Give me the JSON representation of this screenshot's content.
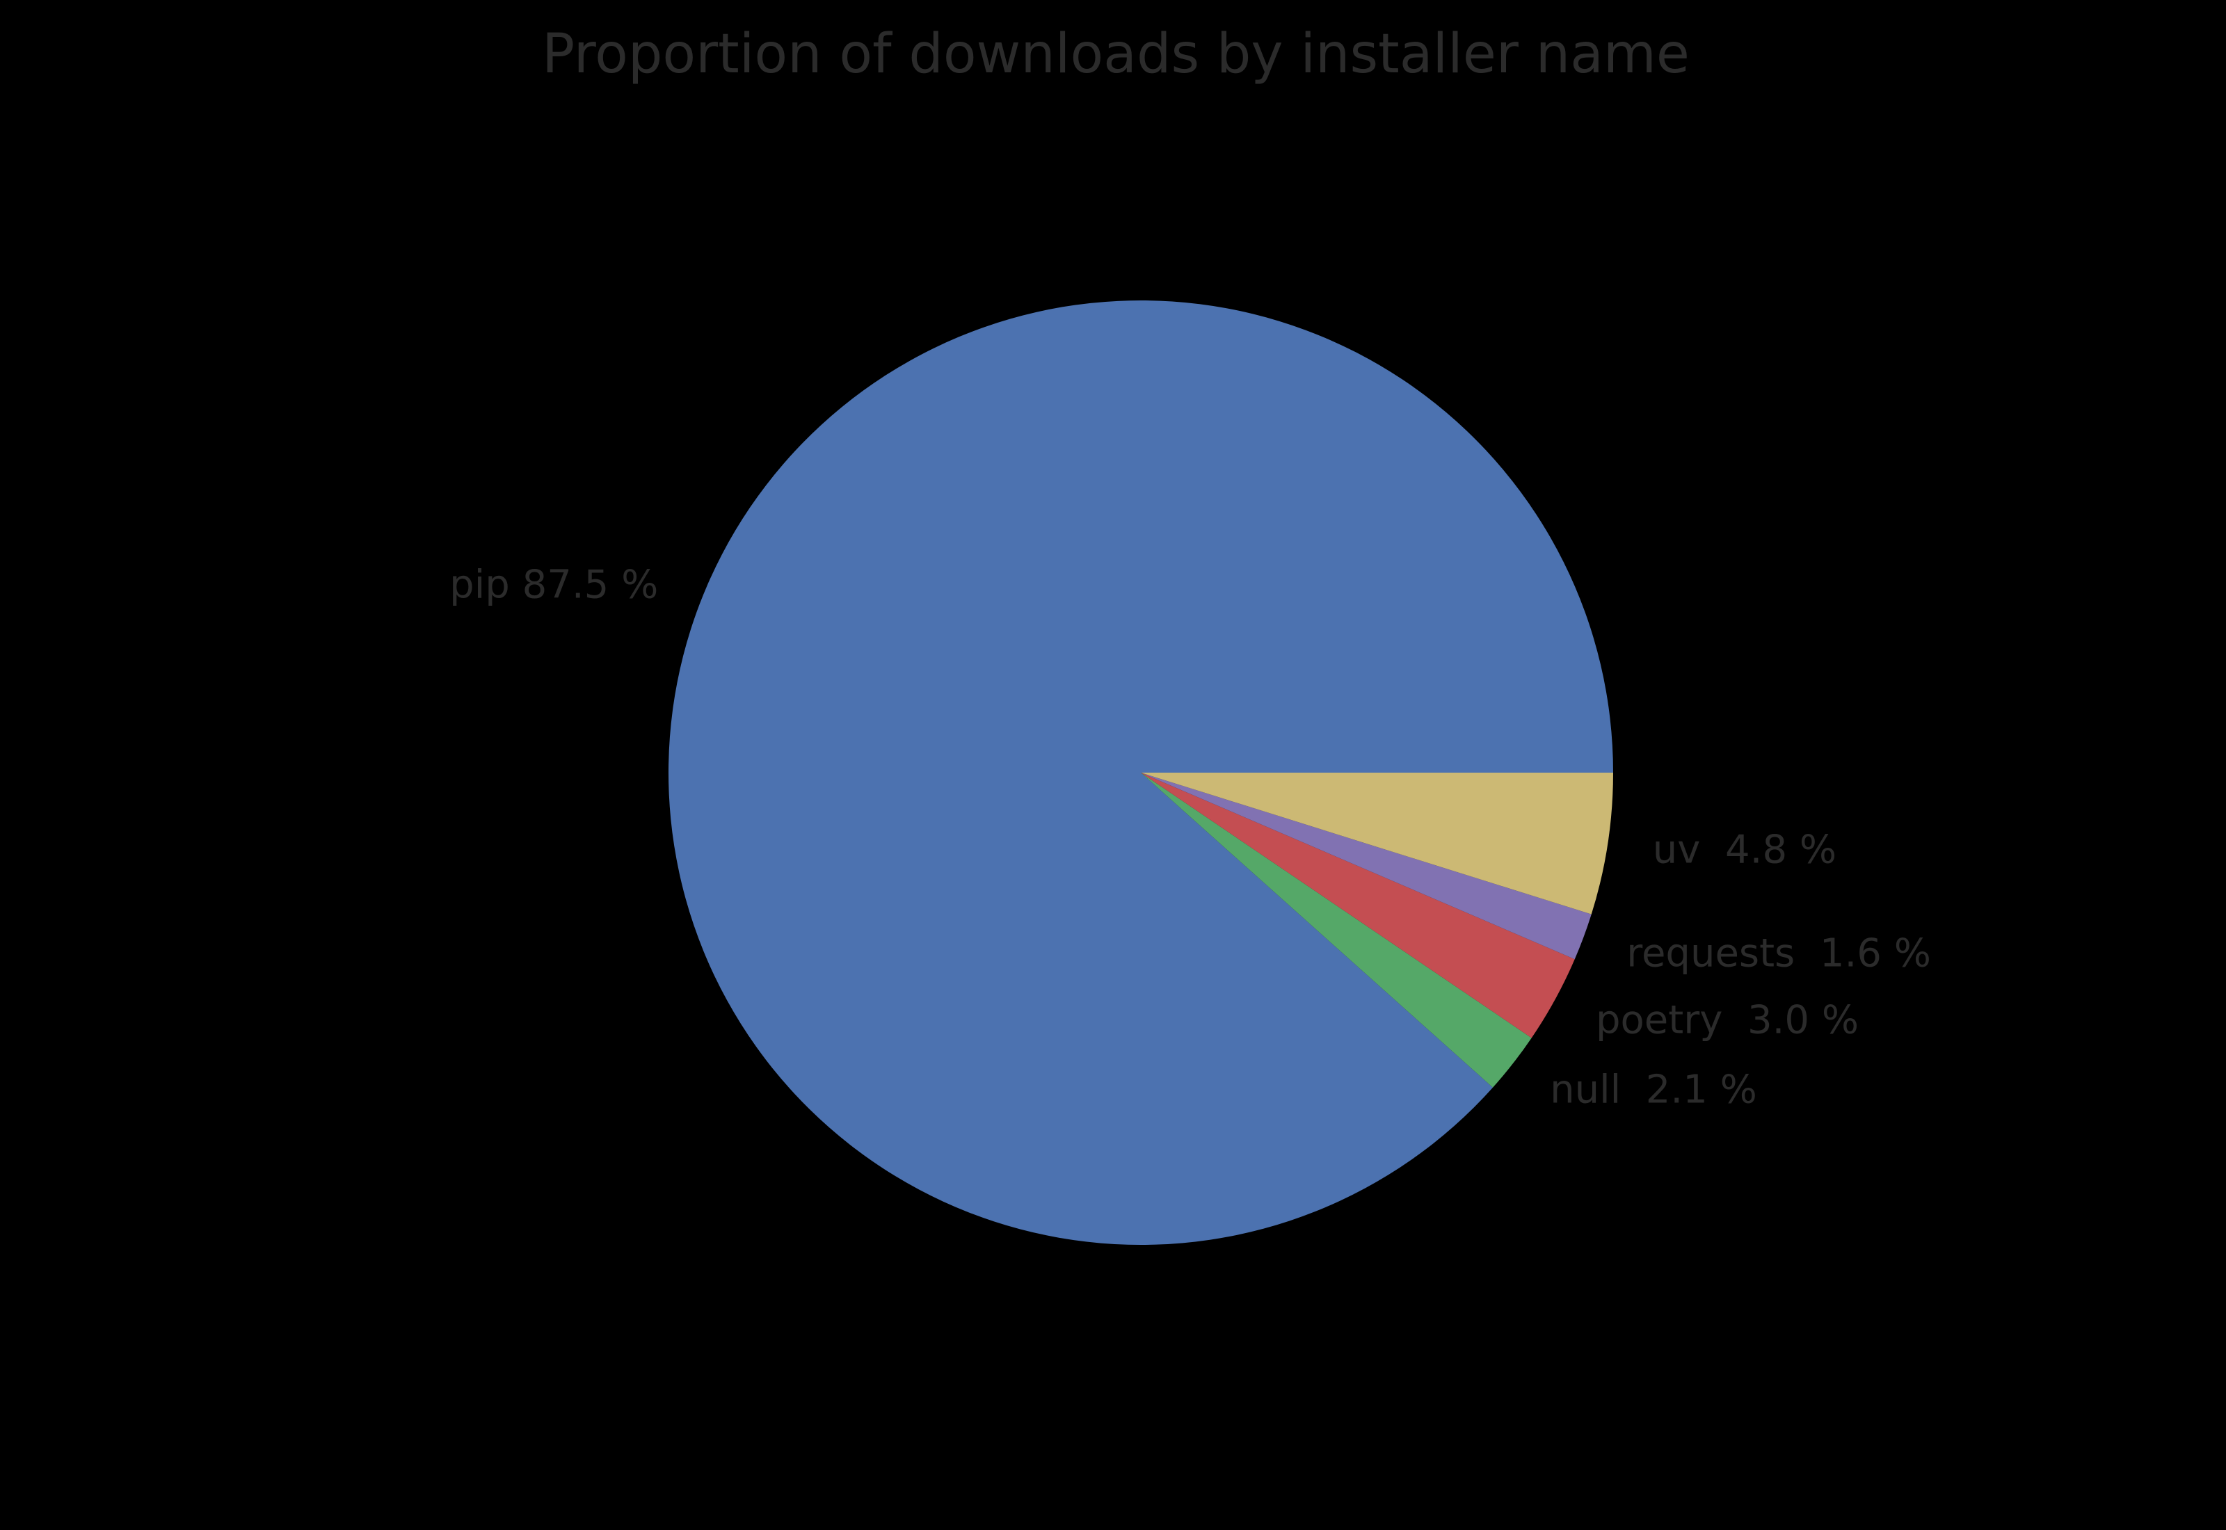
{
  "figure": {
    "background_color": "#000000",
    "text_color": "#2b2b2b"
  },
  "chart_data": {
    "type": "pie",
    "title": "Proportion of downloads by installer name",
    "slices": [
      {
        "label": "pip",
        "value": 87.5,
        "display_label": "pip 87.5 %",
        "color": "#4C72B0"
      },
      {
        "label": "null",
        "value": 2.1,
        "display_label": "null  2.1 %",
        "color": "#55A868"
      },
      {
        "label": "poetry",
        "value": 3.0,
        "display_label": "poetry  3.0 %",
        "color": "#C44E52"
      },
      {
        "label": "requests",
        "value": 1.6,
        "display_label": "requests  1.6 %",
        "color": "#8172B2"
      },
      {
        "label": "uv",
        "value": 4.8,
        "display_label": "uv  4.8 %",
        "color": "#CCB974"
      }
    ],
    "start_angle_deg": 0,
    "direction": "counterclockwise",
    "label_distance": 1.1,
    "legend": false,
    "grid": false
  }
}
